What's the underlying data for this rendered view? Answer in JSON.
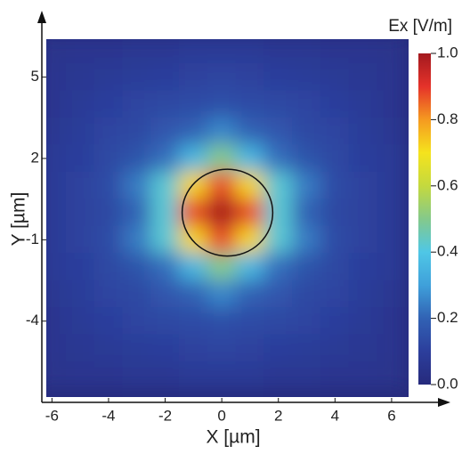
{
  "chart_data": {
    "type": "heatmap",
    "xlabel": "X [µm]",
    "ylabel": "Y [µm]",
    "colorbar_title": "Ex [V/m]",
    "xlim": [
      -6.2,
      6.6
    ],
    "ylim": [
      -6.8,
      6.4
    ],
    "xticks": [
      -6,
      -4,
      -2,
      0,
      2,
      4,
      6
    ],
    "yticks": [
      5,
      2,
      -1,
      -4
    ],
    "clim": [
      0,
      1
    ],
    "cticks": [
      {
        "value": 0,
        "label": "0.0"
      },
      0.2,
      0.4,
      0.6,
      0.8,
      {
        "value": 1,
        "label": "1.0"
      }
    ],
    "colors": [
      "#262a7c",
      "#2c3e9c",
      "#3162b4",
      "#3fa0da",
      "#4fc7e6",
      "#84c98b",
      "#c4d93e",
      "#f5e31d",
      "#f59a20",
      "#e5322a",
      "#a3191f"
    ],
    "circle": {
      "x": 0.2,
      "y": 0,
      "r": 1.6
    },
    "x": [
      -6,
      -5,
      -4,
      -3,
      -2,
      -1,
      0,
      1,
      2,
      3,
      4,
      5,
      6
    ],
    "y": [
      6,
      5,
      4,
      3,
      2,
      1,
      0,
      -1,
      -2,
      -3,
      -4,
      -5,
      -6
    ],
    "z": [
      [
        0.05,
        0.06,
        0.06,
        0.07,
        0.07,
        0.08,
        0.08,
        0.08,
        0.07,
        0.07,
        0.06,
        0.06,
        0.05
      ],
      [
        0.06,
        0.07,
        0.08,
        0.09,
        0.1,
        0.11,
        0.12,
        0.11,
        0.1,
        0.09,
        0.08,
        0.07,
        0.06
      ],
      [
        0.06,
        0.08,
        0.1,
        0.12,
        0.13,
        0.14,
        0.15,
        0.14,
        0.13,
        0.12,
        0.1,
        0.08,
        0.06
      ],
      [
        0.07,
        0.09,
        0.12,
        0.13,
        0.17,
        0.2,
        0.26,
        0.2,
        0.17,
        0.13,
        0.12,
        0.09,
        0.07
      ],
      [
        0.08,
        0.1,
        0.13,
        0.16,
        0.22,
        0.36,
        0.5,
        0.36,
        0.22,
        0.16,
        0.13,
        0.1,
        0.08
      ],
      [
        0.08,
        0.11,
        0.14,
        0.24,
        0.42,
        0.72,
        0.88,
        0.72,
        0.42,
        0.24,
        0.14,
        0.11,
        0.08
      ],
      [
        0.08,
        0.11,
        0.13,
        0.2,
        0.42,
        0.88,
        1.0,
        0.88,
        0.42,
        0.2,
        0.13,
        0.11,
        0.08
      ],
      [
        0.08,
        0.11,
        0.14,
        0.24,
        0.42,
        0.72,
        0.88,
        0.72,
        0.42,
        0.24,
        0.14,
        0.11,
        0.08
      ],
      [
        0.08,
        0.1,
        0.13,
        0.16,
        0.22,
        0.36,
        0.5,
        0.36,
        0.22,
        0.16,
        0.13,
        0.1,
        0.08
      ],
      [
        0.07,
        0.09,
        0.12,
        0.13,
        0.17,
        0.2,
        0.26,
        0.2,
        0.17,
        0.13,
        0.12,
        0.09,
        0.07
      ],
      [
        0.06,
        0.08,
        0.1,
        0.12,
        0.13,
        0.14,
        0.15,
        0.14,
        0.13,
        0.12,
        0.1,
        0.08,
        0.06
      ],
      [
        0.06,
        0.07,
        0.08,
        0.09,
        0.1,
        0.11,
        0.12,
        0.11,
        0.1,
        0.09,
        0.08,
        0.07,
        0.06
      ],
      [
        0.05,
        0.06,
        0.06,
        0.07,
        0.07,
        0.08,
        0.08,
        0.08,
        0.07,
        0.07,
        0.06,
        0.06,
        0.05
      ]
    ]
  }
}
